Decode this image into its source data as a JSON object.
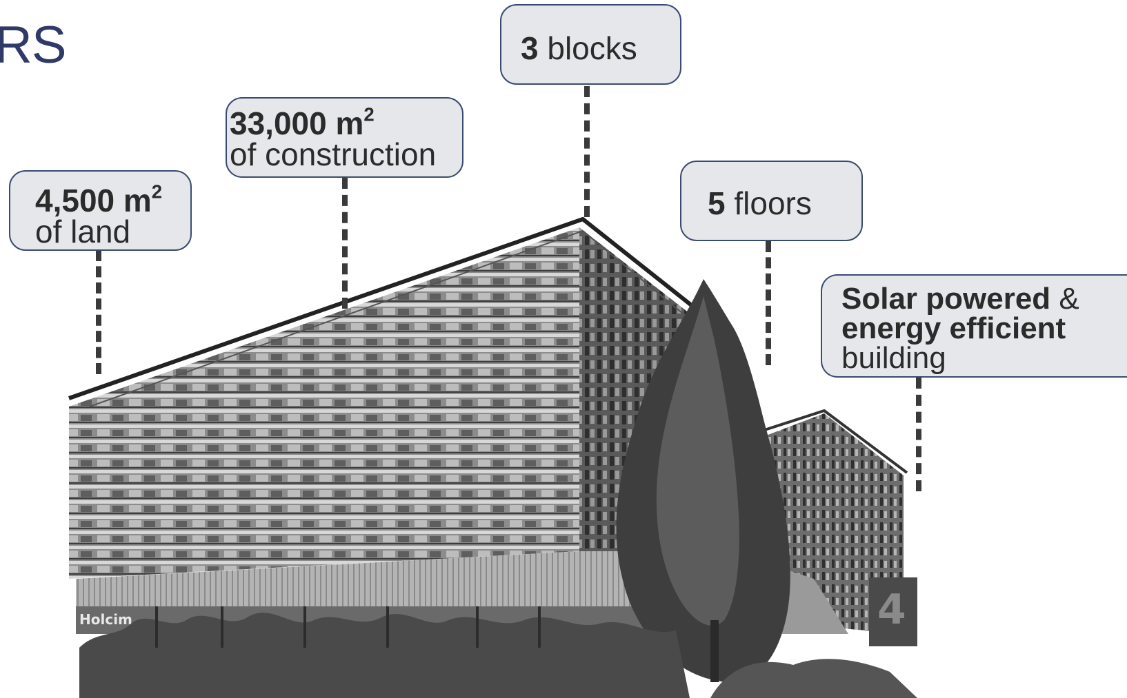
{
  "heading": "RS",
  "callouts": {
    "land": {
      "value": "4,500 m",
      "sup": "2",
      "label": "of land"
    },
    "construction": {
      "value": "33,000 m",
      "sup": "2",
      "label": "of construction"
    },
    "blocks": {
      "value": "3",
      "label": "blocks"
    },
    "floors": {
      "value": "5",
      "label": "floors"
    },
    "solar": {
      "bold1": "Solar powered",
      "amp": "&",
      "bold2": "energy efficient",
      "label": "building"
    }
  },
  "building_sign": {
    "logo": "Holcim",
    "block_number": "4"
  },
  "colors": {
    "heading": "#2f3a68",
    "callout_fill": "#e6e7ea",
    "callout_border": "#3a4a72",
    "leader": "#3a3a3a"
  }
}
